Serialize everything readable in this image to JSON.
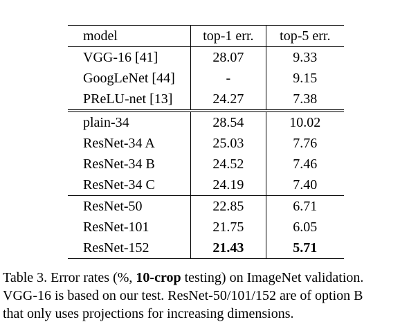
{
  "table": {
    "headers": [
      "model",
      "top-1 err.",
      "top-5 err."
    ],
    "rows": [
      {
        "model": "VGG-16 [41]",
        "top1": "28.07",
        "top5": "9.33"
      },
      {
        "model": "GoogLeNet [44]",
        "top1": "-",
        "top5": "9.15"
      },
      {
        "model": "PReLU-net [13]",
        "top1": "24.27",
        "top5": "7.38"
      },
      {
        "model": "plain-34",
        "top1": "28.54",
        "top5": "10.02"
      },
      {
        "model": "ResNet-34 A",
        "top1": "25.03",
        "top5": "7.76"
      },
      {
        "model": "ResNet-34 B",
        "top1": "24.52",
        "top5": "7.46"
      },
      {
        "model": "ResNet-34 C",
        "top1": "24.19",
        "top5": "7.40"
      },
      {
        "model": "ResNet-50",
        "top1": "22.85",
        "top5": "6.71"
      },
      {
        "model": "ResNet-101",
        "top1": "21.75",
        "top5": "6.05"
      },
      {
        "model": "ResNet-152",
        "top1": "21.43",
        "top5": "5.71"
      }
    ]
  },
  "caption": {
    "prefix": "Table 3. Error rates (%, ",
    "bold": "10-crop",
    "suffix": " testing) on ImageNet validation.",
    "line2": "VGG-16 is based on our test. ResNet-50/101/152 are of option B",
    "line3": "that only uses projections for increasing dimensions."
  }
}
